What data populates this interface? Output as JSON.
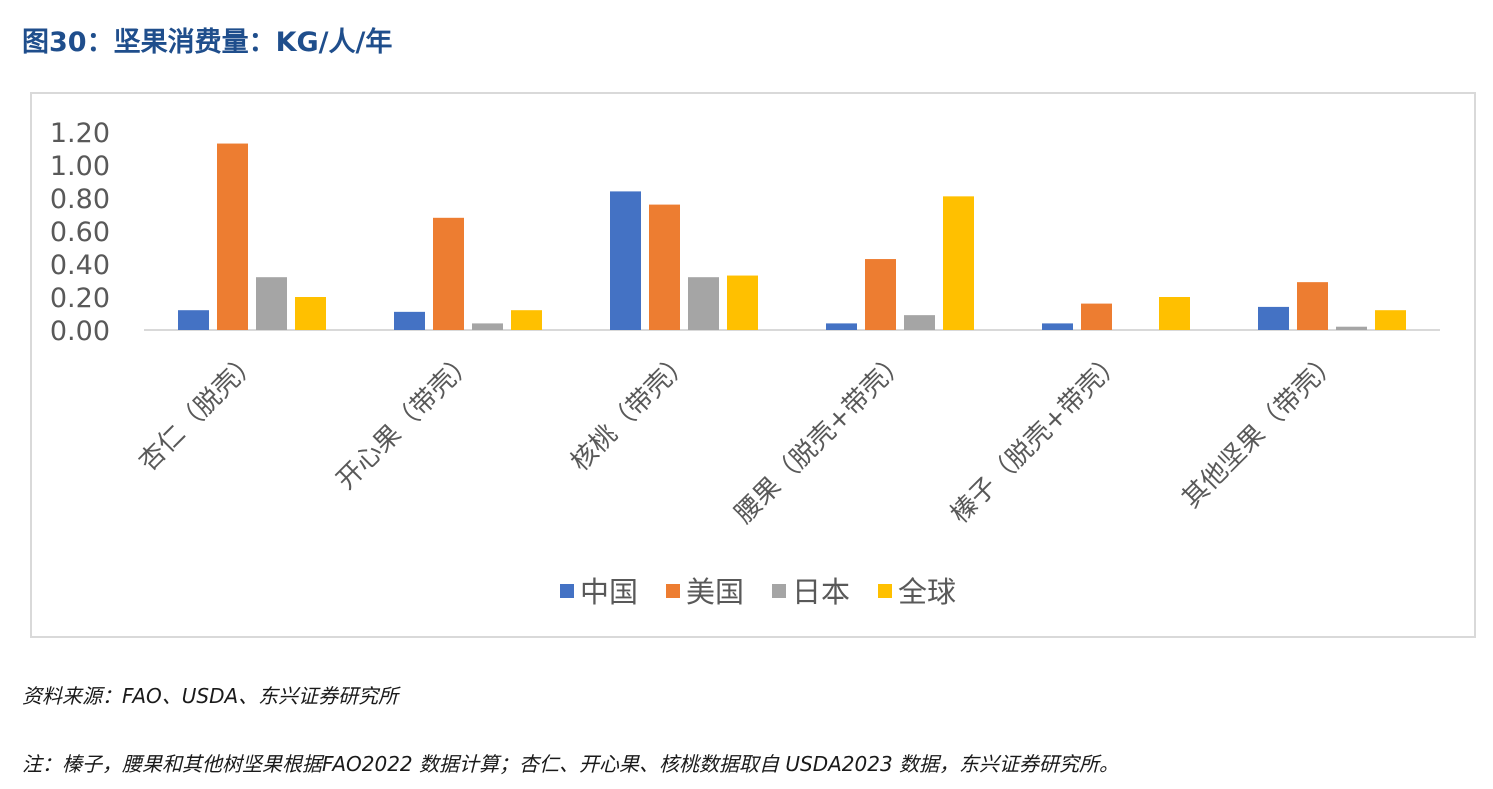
{
  "figure_title": "图30：坚果消费量：KG/人/年",
  "source_note": "资料来源：FAO、USDA、东兴证券研究所",
  "footnote": "注：榛子，腰果和其他树坚果根据FAO2022 数据计算；杏仁、开心果、核桃数据取自 USDA2023 数据，东兴证券研究所。",
  "chart_data": {
    "type": "bar",
    "categories": [
      "杏仁（脱壳）",
      "开心果（带壳）",
      "核桃（带壳）",
      "腰果（脱壳+带壳）",
      "榛子（脱壳+带壳）",
      "其他坚果（带壳）"
    ],
    "series": [
      {
        "name": "中国",
        "color": "#4472c4",
        "values": [
          0.12,
          0.11,
          0.84,
          0.04,
          0.04,
          0.14
        ]
      },
      {
        "name": "美国",
        "color": "#ed7d31",
        "values": [
          1.13,
          0.68,
          0.76,
          0.43,
          0.16,
          0.29
        ]
      },
      {
        "name": "日本",
        "color": "#a5a5a5",
        "values": [
          0.32,
          0.04,
          0.32,
          0.09,
          null,
          0.02
        ]
      },
      {
        "name": "全球",
        "color": "#ffc000",
        "values": [
          0.2,
          0.12,
          0.33,
          0.81,
          0.2,
          0.12
        ]
      }
    ],
    "yticks": [
      "0.00",
      "0.20",
      "0.40",
      "0.60",
      "0.80",
      "1.00",
      "1.20"
    ],
    "ylim": [
      0,
      1.2
    ],
    "grid": false,
    "legend_position": "bottom"
  }
}
